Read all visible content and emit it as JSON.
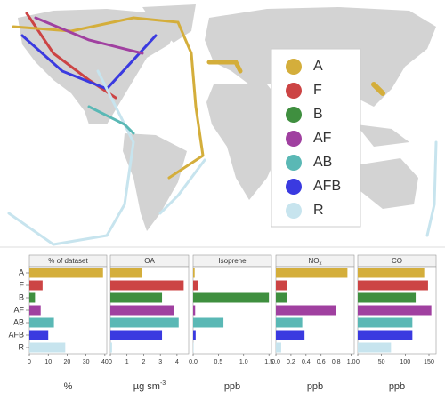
{
  "chart_data": {
    "type": "bar",
    "categories": [
      "A",
      "F",
      "B",
      "AF",
      "AB",
      "AFB",
      "R"
    ],
    "colors": [
      "#d4ae3b",
      "#cc4444",
      "#3f8f3f",
      "#a040a0",
      "#5ab8b5",
      "#3a3ae0",
      "#c7e4ee"
    ],
    "panels": [
      {
        "title": "% of dataset",
        "xlabel": "%",
        "values": [
          39,
          7,
          3,
          6,
          13,
          10,
          19
        ],
        "xlim": [
          0,
          41
        ],
        "xticks": [
          0,
          10,
          20,
          30,
          40
        ]
      },
      {
        "title": "OA",
        "xlabel": "µg sm",
        "xlabel_sup": "-3",
        "values": [
          1.9,
          4.4,
          3.1,
          3.8,
          4.1,
          3.1,
          0.1
        ],
        "xlim": [
          0,
          4.7
        ],
        "xticks": [
          0,
          1,
          2,
          3,
          4
        ]
      },
      {
        "title": "Isoprene",
        "xlabel": "ppb",
        "values": [
          0.03,
          0.1,
          1.5,
          0.04,
          0.6,
          0.05,
          0.01
        ],
        "xlim": [
          0,
          1.55
        ],
        "xticks": [
          {
            "value": 0,
            "label": "0.0"
          },
          0.5,
          {
            "value": 1,
            "label": "1.0"
          },
          1.5
        ]
      },
      {
        "title": "NO",
        "title_sub": "x",
        "xlabel": "ppb",
        "values": [
          0.95,
          0.15,
          0.15,
          0.8,
          0.35,
          0.38,
          0.07
        ],
        "xlim": [
          0,
          1.04
        ],
        "xticks": [
          {
            "value": 0,
            "label": "0.0"
          },
          0.2,
          0.4,
          0.6,
          0.8,
          {
            "value": 1,
            "label": "1.0"
          }
        ]
      },
      {
        "title": "CO",
        "xlabel": "ppb",
        "values": [
          140,
          148,
          122,
          155,
          115,
          115,
          70
        ],
        "xlim": [
          0,
          165
        ],
        "xticks": [
          0,
          50,
          100,
          150
        ]
      }
    ]
  }
}
